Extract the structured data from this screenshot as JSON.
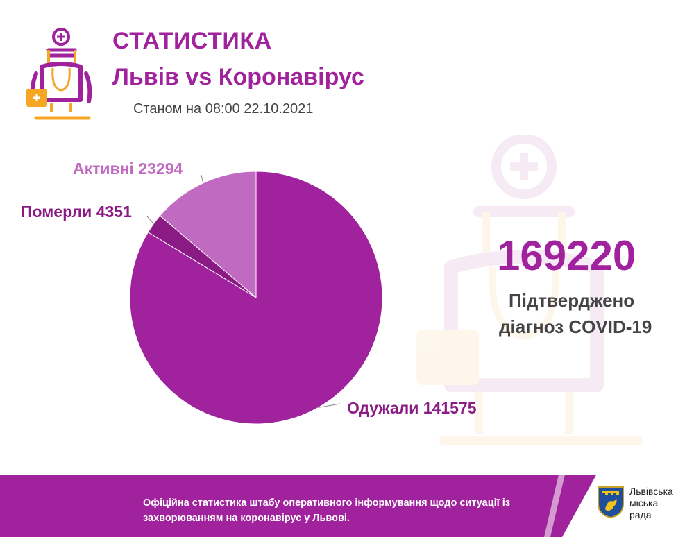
{
  "header": {
    "title": "СТАТИСТИКА",
    "subtitle": "Львів vs Коронавірус",
    "date": "Станом на 08:00 22.10.2021"
  },
  "icons": {
    "logo": "doctor-icon",
    "watermark": "doctor-icon",
    "coat_of_arms": "lion-coat-of-arms-icon"
  },
  "colors": {
    "brand": "#a0229c",
    "recovered": "#a0229c",
    "active": "#c06ac2",
    "deceased": "#8a1b84",
    "accent": "#f5a623"
  },
  "chart_data": {
    "type": "pie",
    "slices": [
      {
        "name": "Активні",
        "value": 23294,
        "label": "Активні 23294",
        "color": "#c06ac2"
      },
      {
        "name": "Померли",
        "value": 4351,
        "label": "Померли 4351",
        "color": "#8a1b84"
      },
      {
        "name": "Одужали",
        "value": 141575,
        "label": "Одужали 141575",
        "color": "#a0229c"
      }
    ],
    "total": 169220,
    "start": "12 o'clock",
    "direction": "counterclockwise"
  },
  "summary": {
    "total": "169220",
    "line1": "Підтверджено",
    "line2": "діагноз COVID-19"
  },
  "footer": {
    "text": "Офіційна статистика штабу оперативного інформування щодо ситуації із захворюванням на коронавірус у Львові.",
    "org_line1": "Львівська",
    "org_line2": "міська",
    "org_line3": "рада"
  }
}
